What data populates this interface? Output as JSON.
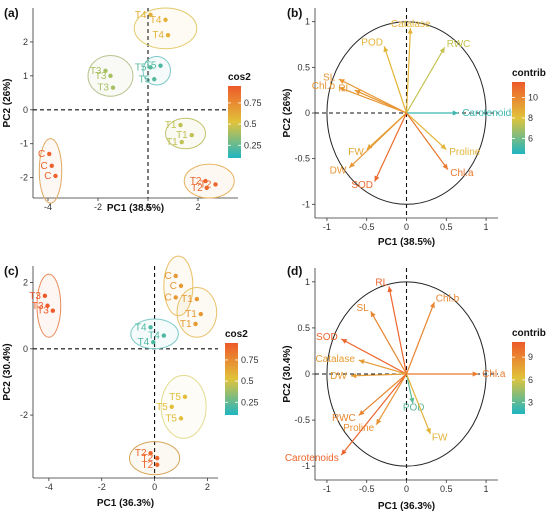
{
  "chart_data": [
    {
      "type": "scatter",
      "panel": "(a)",
      "xlabel": "PC1 (38.5%)",
      "ylabel": "PC2 (26%)",
      "xlim": [
        -4.6,
        3.6
      ],
      "ylim": [
        -2.6,
        3.0
      ],
      "xticks": [
        -4,
        -2,
        0,
        2
      ],
      "yticks": [
        -2,
        -1,
        0,
        1,
        2
      ],
      "legend": {
        "title": "cos2",
        "ticks": [
          0.75,
          0.5,
          0.25
        ],
        "range": [
          0.1,
          0.95
        ],
        "position": "right"
      },
      "groups": [
        {
          "ellipse": {
            "cx": 0.7,
            "cy": 2.4,
            "rx": 1.25,
            "ry": 0.6,
            "color": "#e3ca6a"
          },
          "points": [
            {
              "label": "T4",
              "x": 0.1,
              "y": 2.8,
              "cos2": 0.6
            },
            {
              "label": "T4",
              "x": 0.7,
              "y": 2.65,
              "cos2": 0.6
            },
            {
              "label": "T4",
              "x": 0.8,
              "y": 2.2,
              "cos2": 0.6
            }
          ]
        },
        {
          "ellipse": {
            "cx": -1.5,
            "cy": 1.0,
            "rx": 0.9,
            "ry": 0.6,
            "color": "#b7c48f"
          },
          "points": [
            {
              "label": "T3",
              "x": -1.7,
              "y": 1.15,
              "cos2": 0.4
            },
            {
              "label": "T3",
              "x": -1.5,
              "y": 1.0,
              "cos2": 0.4
            },
            {
              "label": "T3",
              "x": -1.4,
              "y": 0.65,
              "cos2": 0.4
            }
          ]
        },
        {
          "ellipse": {
            "cx": 0.35,
            "cy": 1.15,
            "rx": 0.55,
            "ry": 0.42,
            "color": "#7cc7c8"
          },
          "points": [
            {
              "label": "T5",
              "x": 0.1,
              "y": 1.25,
              "cos2": 0.22
            },
            {
              "label": "T5",
              "x": 0.5,
              "y": 1.3,
              "cos2": 0.2
            },
            {
              "label": "T5",
              "x": 0.25,
              "y": 0.9,
              "cos2": 0.22
            }
          ]
        },
        {
          "ellipse": {
            "cx": 1.5,
            "cy": -0.7,
            "rx": 0.8,
            "ry": 0.45,
            "color": "#c2c46c"
          },
          "points": [
            {
              "label": "T1",
              "x": 1.3,
              "y": -0.45,
              "cos2": 0.45
            },
            {
              "label": "T1",
              "x": 1.75,
              "y": -0.75,
              "cos2": 0.45
            },
            {
              "label": "T1",
              "x": 1.35,
              "y": -0.95,
              "cos2": 0.45
            }
          ]
        },
        {
          "ellipse": {
            "cx": 2.45,
            "cy": -2.1,
            "rx": 1.0,
            "ry": 0.5,
            "color": "#e7b25f"
          },
          "points": [
            {
              "label": "T2",
              "x": 2.3,
              "y": -2.1,
              "cos2": 0.9
            },
            {
              "label": "T2",
              "x": 2.7,
              "y": -2.2,
              "cos2": 0.9
            },
            {
              "label": "T2",
              "x": 2.35,
              "y": -2.3,
              "cos2": 0.9
            }
          ]
        },
        {
          "ellipse": {
            "cx": -3.9,
            "cy": -1.8,
            "rx": 0.45,
            "ry": 0.95,
            "color": "#e0a861"
          },
          "points": [
            {
              "label": "C",
              "x": -3.95,
              "y": -1.3,
              "cos2": 0.92
            },
            {
              "label": "C",
              "x": -3.85,
              "y": -1.65,
              "cos2": 0.92
            },
            {
              "label": "C",
              "x": -3.7,
              "y": -1.95,
              "cos2": 0.92
            }
          ]
        }
      ]
    },
    {
      "type": "biplot",
      "panel": "(b)",
      "xlabel": "PC1 (38.5%)",
      "ylabel": "PC2 (26%)",
      "xlim": [
        -1.15,
        1.15
      ],
      "ylim": [
        -1.15,
        1.15
      ],
      "xticks": [
        -1.0,
        -0.5,
        0.0,
        0.5,
        1.0
      ],
      "yticks": [
        -1.0,
        -0.5,
        0.0,
        0.5,
        1.0
      ],
      "legend": {
        "title": "contrib",
        "ticks": [
          10,
          8,
          6
        ],
        "range": [
          4.5,
          11.5
        ],
        "position": "right"
      },
      "vectors": [
        {
          "label": "Catalase",
          "x": 0.05,
          "y": 0.93,
          "contrib": 8.5
        },
        {
          "label": "POD",
          "x": -0.28,
          "y": 0.73,
          "contrib": 8.5
        },
        {
          "label": "RWC",
          "x": 0.48,
          "y": 0.72,
          "contrib": 7.5
        },
        {
          "label": "SL",
          "x": -0.85,
          "y": 0.37,
          "contrib": 9.5
        },
        {
          "label": "RL",
          "x": -0.65,
          "y": 0.25,
          "contrib": 9.5
        },
        {
          "label": "Chl.b",
          "x": -0.85,
          "y": 0.28,
          "contrib": 9.5
        },
        {
          "label": "Carotenoids",
          "x": 0.65,
          "y": 0.0,
          "contrib": 5.0
        },
        {
          "label": "Proline",
          "x": 0.5,
          "y": -0.4,
          "contrib": 8.5
        },
        {
          "label": "FW",
          "x": -0.5,
          "y": -0.4,
          "contrib": 9.0
        },
        {
          "label": "DW",
          "x": -0.72,
          "y": -0.6,
          "contrib": 9.5
        },
        {
          "label": "SOD",
          "x": -0.4,
          "y": -0.75,
          "contrib": 11.0
        },
        {
          "label": "Chl.a",
          "x": 0.52,
          "y": -0.62,
          "contrib": 10.5
        }
      ]
    },
    {
      "type": "scatter",
      "panel": "(c)",
      "xlabel": "PC1 (36.3%)",
      "ylabel": "PC2 (30.4%)",
      "xlim": [
        -4.6,
        2.4
      ],
      "ylim": [
        -3.9,
        2.5
      ],
      "xticks": [
        -4,
        -2,
        0,
        2
      ],
      "yticks": [
        -2,
        0,
        2
      ],
      "legend": {
        "title": "cos2",
        "ticks": [
          0.75,
          0.5,
          0.25
        ],
        "range": [
          0.1,
          0.95
        ],
        "position": "right"
      },
      "groups": [
        {
          "ellipse": {
            "cx": -4.0,
            "cy": 1.3,
            "rx": 0.45,
            "ry": 0.95,
            "color": "#e78a5a"
          },
          "points": [
            {
              "label": "T3",
              "x": -4.15,
              "y": 1.6,
              "cos2": 0.95
            },
            {
              "label": "T3",
              "x": -4.05,
              "y": 1.3,
              "cos2": 0.95
            },
            {
              "label": "T3",
              "x": -3.85,
              "y": 1.15,
              "cos2": 0.95
            }
          ]
        },
        {
          "ellipse": {
            "cx": 0.9,
            "cy": 1.9,
            "rx": 0.55,
            "ry": 0.9,
            "color": "#e9bf63"
          },
          "points": [
            {
              "label": "C",
              "x": 0.8,
              "y": 2.2,
              "cos2": 0.7
            },
            {
              "label": "C",
              "x": 1.0,
              "y": 1.9,
              "cos2": 0.7
            },
            {
              "label": "C",
              "x": 0.8,
              "y": 1.55,
              "cos2": 0.7
            }
          ]
        },
        {
          "ellipse": {
            "cx": 1.6,
            "cy": 1.1,
            "rx": 0.75,
            "ry": 0.75,
            "color": "#e9c26a"
          },
          "points": [
            {
              "label": "T1",
              "x": 1.6,
              "y": 1.5,
              "cos2": 0.7
            },
            {
              "label": "T1",
              "x": 1.75,
              "y": 1.05,
              "cos2": 0.7
            },
            {
              "label": "T1",
              "x": 1.55,
              "y": 0.75,
              "cos2": 0.7
            }
          ]
        },
        {
          "ellipse": {
            "cx": 0.0,
            "cy": 0.45,
            "rx": 0.9,
            "ry": 0.45,
            "color": "#7fc9c9"
          },
          "points": [
            {
              "label": "T4",
              "x": -0.15,
              "y": 0.65,
              "cos2": 0.2
            },
            {
              "label": "T4",
              "x": 0.35,
              "y": 0.4,
              "cos2": 0.2
            },
            {
              "label": "T4",
              "x": -0.05,
              "y": 0.2,
              "cos2": 0.2
            }
          ]
        },
        {
          "ellipse": {
            "cx": 1.1,
            "cy": -1.75,
            "rx": 0.85,
            "ry": 0.95,
            "color": "#e4dc92"
          },
          "points": [
            {
              "label": "T5",
              "x": 1.15,
              "y": -1.45,
              "cos2": 0.55
            },
            {
              "label": "T5",
              "x": 0.65,
              "y": -1.75,
              "cos2": 0.55
            },
            {
              "label": "T5",
              "x": 1.0,
              "y": -2.1,
              "cos2": 0.55
            }
          ]
        },
        {
          "ellipse": {
            "cx": 0.0,
            "cy": -3.3,
            "rx": 0.95,
            "ry": 0.5,
            "color": "#d6a65b"
          },
          "points": [
            {
              "label": "T2",
              "x": -0.15,
              "y": -3.15,
              "cos2": 0.9
            },
            {
              "label": "T2",
              "x": 0.1,
              "y": -3.3,
              "cos2": 0.9
            },
            {
              "label": "T2",
              "x": 0.1,
              "y": -3.5,
              "cos2": 0.9
            }
          ]
        }
      ]
    },
    {
      "type": "biplot",
      "panel": "(d)",
      "xlabel": "PC1 (36.3%)",
      "ylabel": "PC2 (30.4%)",
      "xlim": [
        -1.15,
        1.15
      ],
      "ylim": [
        -1.15,
        1.15
      ],
      "xticks": [
        -1.0,
        -0.5,
        0.0,
        0.5,
        1.0
      ],
      "yticks": [
        -1.0,
        -0.5,
        0.0,
        0.5,
        1.0
      ],
      "legend": {
        "title": "contrib",
        "ticks": [
          9,
          6,
          3
        ],
        "range": [
          1.5,
          11
        ],
        "position": "right"
      },
      "vectors": [
        {
          "label": "RL",
          "x": -0.22,
          "y": 0.95,
          "contrib": 10.5
        },
        {
          "label": "Chl.b",
          "x": 0.35,
          "y": 0.78,
          "contrib": 9.0
        },
        {
          "label": "SL",
          "x": -0.45,
          "y": 0.68,
          "contrib": 9.0
        },
        {
          "label": "SOD",
          "x": -0.82,
          "y": 0.38,
          "contrib": 10.5
        },
        {
          "label": "Catalase",
          "x": -0.6,
          "y": 0.15,
          "contrib": 8.0
        },
        {
          "label": "DW",
          "x": -0.7,
          "y": -0.02,
          "contrib": 8.0
        },
        {
          "label": "Chl.a",
          "x": 0.9,
          "y": 0.0,
          "contrib": 9.5
        },
        {
          "label": "POD",
          "x": 0.08,
          "y": -0.32,
          "contrib": 3.0
        },
        {
          "label": "FW",
          "x": 0.3,
          "y": -0.65,
          "contrib": 7.0
        },
        {
          "label": "RWC",
          "x": -0.6,
          "y": -0.45,
          "contrib": 9.0
        },
        {
          "label": "Proline",
          "x": -0.38,
          "y": -0.55,
          "contrib": 8.5
        },
        {
          "label": "Carotenoids",
          "x": -0.82,
          "y": -0.88,
          "contrib": 10.5
        }
      ]
    }
  ]
}
